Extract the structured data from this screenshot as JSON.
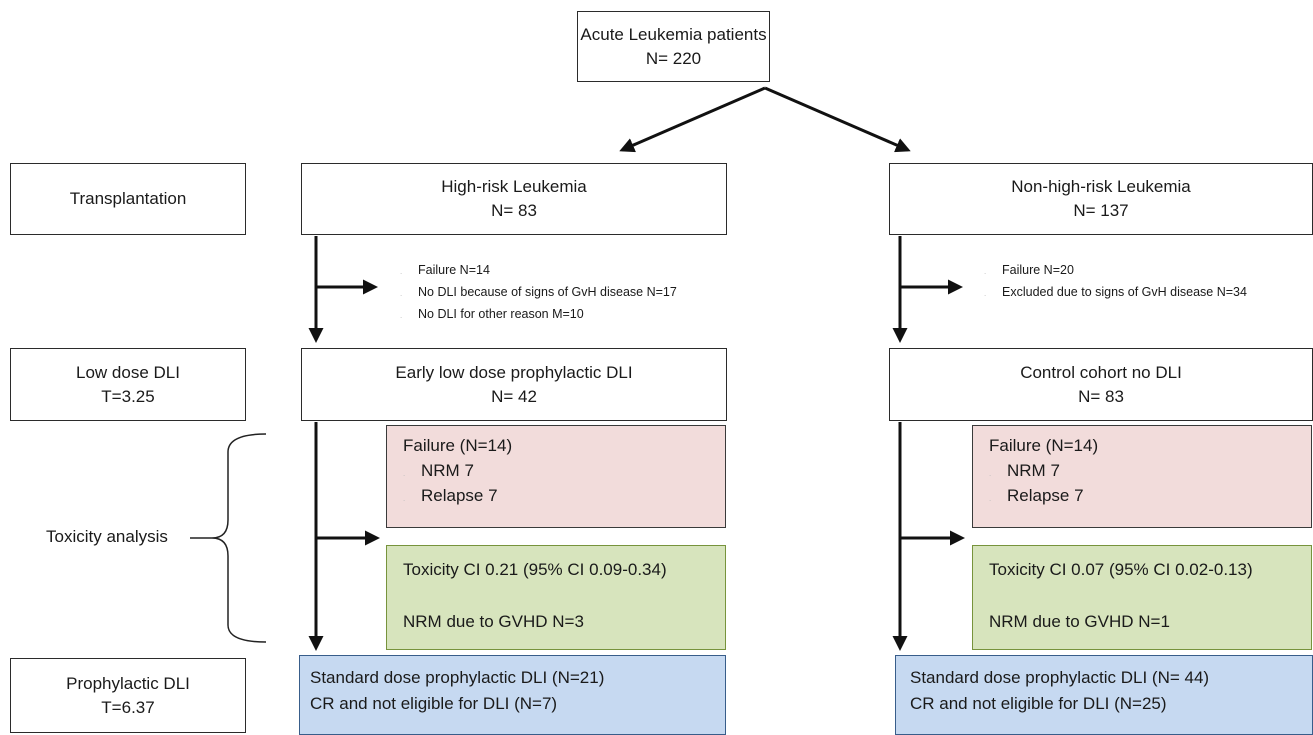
{
  "root": {
    "line1": "Acute Leukemia patients",
    "line2": "N= 220"
  },
  "stages": {
    "transplantation": "Transplantation",
    "low_dose": {
      "line1": "Low dose DLI",
      "line2": "T=3.25"
    },
    "toxicity": "Toxicity analysis",
    "prophylactic": {
      "line1": "Prophylactic DLI",
      "line2": "T=6.37"
    }
  },
  "left": {
    "group": {
      "line1": "High-risk Leukemia",
      "line2": "N= 83"
    },
    "exclusions": [
      "Failure N=14",
      "No DLI because of signs of GvH disease N=17",
      "No DLI for other reason M=10"
    ],
    "dli": {
      "line1": "Early low dose prophylactic DLI",
      "line2": "N= 42"
    },
    "failure": {
      "title": "Failure (N=14)",
      "items": [
        "NRM 7",
        "Relapse 7"
      ]
    },
    "toxicity": {
      "line1": "Toxicity CI 0.21 (95% CI 0.09-0.34)",
      "line2": "NRM due to GVHD N=3"
    },
    "outcome": {
      "line1": "Standard dose prophylactic DLI (N=21)",
      "line2": "CR and not eligible for DLI (N=7)"
    }
  },
  "right": {
    "group": {
      "line1": "Non-high-risk Leukemia",
      "line2": "N= 137"
    },
    "exclusions": [
      "Failure N=20",
      "Excluded due to signs of GvH disease N=34"
    ],
    "dli": {
      "line1": "Control cohort no DLI",
      "line2": "N= 83"
    },
    "failure": {
      "title": "Failure (N=14)",
      "items": [
        "NRM 7",
        "Relapse 7"
      ]
    },
    "toxicity": {
      "line1": "Toxicity CI 0.07 (95% CI 0.02-0.13)",
      "line2": "NRM due to GVHD N=1"
    },
    "outcome": {
      "line1": "Standard dose prophylactic DLI (N= 44)",
      "line2": "CR and not eligible for DLI (N=25)"
    }
  },
  "colors": {
    "failure_fill": "#f2dcdb",
    "toxicity_fill": "#d7e4bd",
    "outcome_fill": "#c6d9f1"
  }
}
